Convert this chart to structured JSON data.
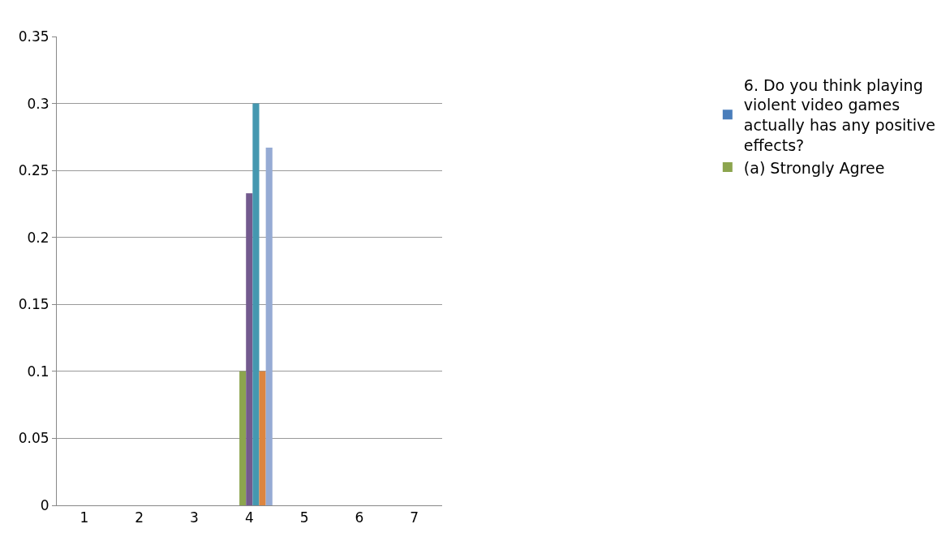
{
  "chart_data": {
    "type": "bar",
    "categories": [
      "1",
      "2",
      "3",
      "4",
      "5",
      "6",
      "7"
    ],
    "series": [
      {
        "name": "6. Do you think playing violent video games actually has any positive effects?",
        "color": "#4a7ebb",
        "values": [
          0,
          0,
          0,
          0,
          0,
          0,
          0
        ]
      },
      {
        "color": "#be4b48",
        "values": [
          0,
          0,
          0,
          0,
          0,
          0,
          0
        ]
      },
      {
        "name": "(a) Strongly Agree",
        "color": "#8ca54e",
        "values": [
          0,
          0,
          0,
          0.1,
          0,
          0,
          0
        ]
      },
      {
        "color": "#735a8e",
        "values": [
          0,
          0,
          0,
          0.233,
          0,
          0,
          0
        ]
      },
      {
        "color": "#4598b0",
        "values": [
          0,
          0,
          0,
          0.3,
          0,
          0,
          0
        ]
      },
      {
        "color": "#dc8540",
        "values": [
          0,
          0,
          0,
          0.1,
          0,
          0,
          0
        ]
      },
      {
        "color": "#96abd4",
        "values": [
          0,
          0,
          0,
          0.267,
          0,
          0,
          0
        ]
      }
    ],
    "ylim": [
      0,
      0.35
    ],
    "yticks": [
      0,
      0.05,
      0.1,
      0.15,
      0.2,
      0.25,
      0.3,
      0.35
    ],
    "grid": "y",
    "legend": "right"
  }
}
